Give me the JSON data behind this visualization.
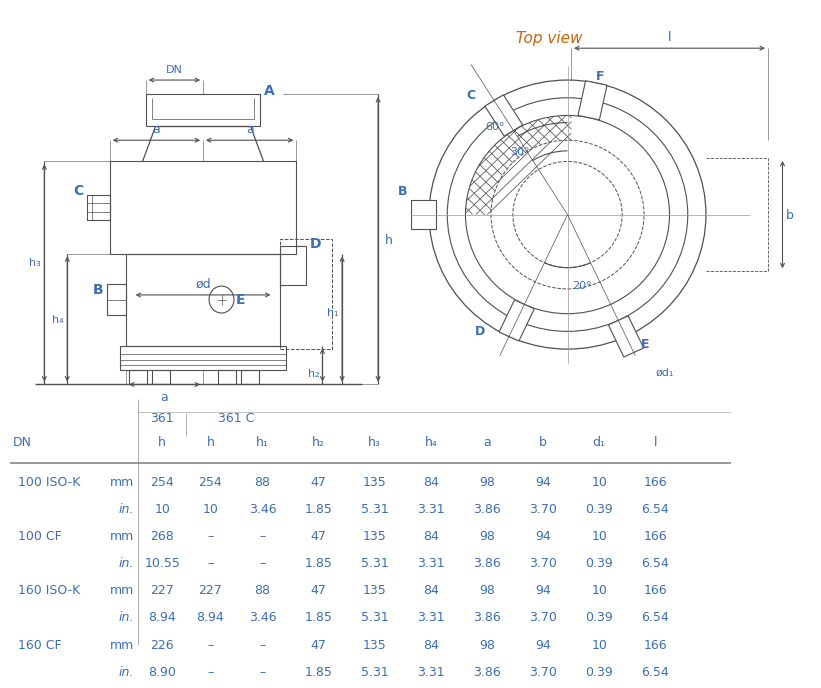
{
  "bg_color": "#ffffff",
  "line_color": "#505050",
  "blue_color": "#3c6eb4",
  "orange_color": "#c8640a",
  "title_topview": "Top view",
  "table": {
    "rows": [
      [
        "100 ISO-K",
        "mm",
        "254",
        "254",
        "88",
        "47",
        "135",
        "84",
        "98",
        "94",
        "10",
        "166"
      ],
      [
        "",
        "in.",
        "10",
        "10",
        "3.46",
        "1.85",
        "5.31",
        "3.31",
        "3.86",
        "3.70",
        "0.39",
        "6.54"
      ],
      [
        "100 CF",
        "mm",
        "268",
        "–",
        "–",
        "47",
        "135",
        "84",
        "98",
        "94",
        "10",
        "166"
      ],
      [
        "",
        "in.",
        "10.55",
        "–",
        "–",
        "1.85",
        "5.31",
        "3.31",
        "3.86",
        "3.70",
        "0.39",
        "6.54"
      ],
      [
        "160 ISO-K",
        "mm",
        "227",
        "227",
        "88",
        "47",
        "135",
        "84",
        "98",
        "94",
        "10",
        "166"
      ],
      [
        "",
        "in.",
        "8.94",
        "8.94",
        "3.46",
        "1.85",
        "5.31",
        "3.31",
        "3.86",
        "3.70",
        "0.39",
        "6.54"
      ],
      [
        "160 CF",
        "mm",
        "226",
        "–",
        "–",
        "47",
        "135",
        "84",
        "98",
        "94",
        "10",
        "166"
      ],
      [
        "",
        "in.",
        "8.90",
        "–",
        "–",
        "1.85",
        "5.31",
        "3.31",
        "3.86",
        "3.70",
        "0.39",
        "6.54"
      ]
    ]
  }
}
